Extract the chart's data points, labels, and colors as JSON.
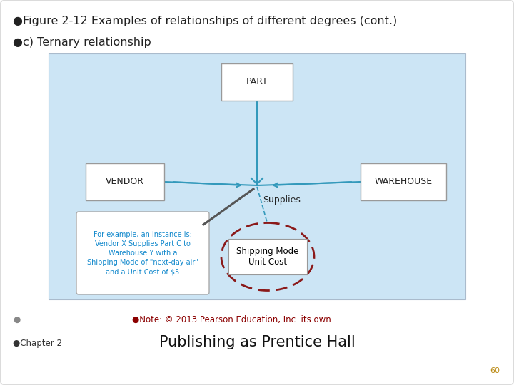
{
  "bg_color": "#ffffff",
  "diagram_bg": "#cce5f5",
  "title_text": "●Figure 2-12 Examples of relationships of different degrees (cont.)",
  "subtitle_text": "●c) Ternary relationship",
  "title_color": "#222222",
  "title_fontsize": 11.5,
  "subtitle_fontsize": 11.5,
  "note_text": "●Note: © 2013 Pearson Education, Inc. its own",
  "note_color": "#8b0000",
  "note_fontsize": 9,
  "chapter_bullet": "●Chapter 2",
  "chapter_fontsize": 9,
  "publisher_text": "Publishing as Prentice Hall",
  "publisher_fontsize": 15,
  "page_num": "60",
  "page_color": "#b8860b",
  "line_color": "#3399bb",
  "dashed_line_color": "#3399bb",
  "ellipse_color": "#8b1a1a",
  "entity_border": "#aaaaaa",
  "example_text_color": "#1188cc",
  "pointer_line_color": "#555555",
  "relation_label": "Supplies",
  "part_label": "PART",
  "vendor_label": "VENDOR",
  "warehouse_label": "WAREHOUSE",
  "attr_text": "Shipping Mode\nUnit Cost",
  "example_text": "For example, an instance is:\nVendor X Supplies Part C to\nWarehouse Y with a\nShipping Mode of \"next-day air\"\nand a Unit Cost of $5"
}
